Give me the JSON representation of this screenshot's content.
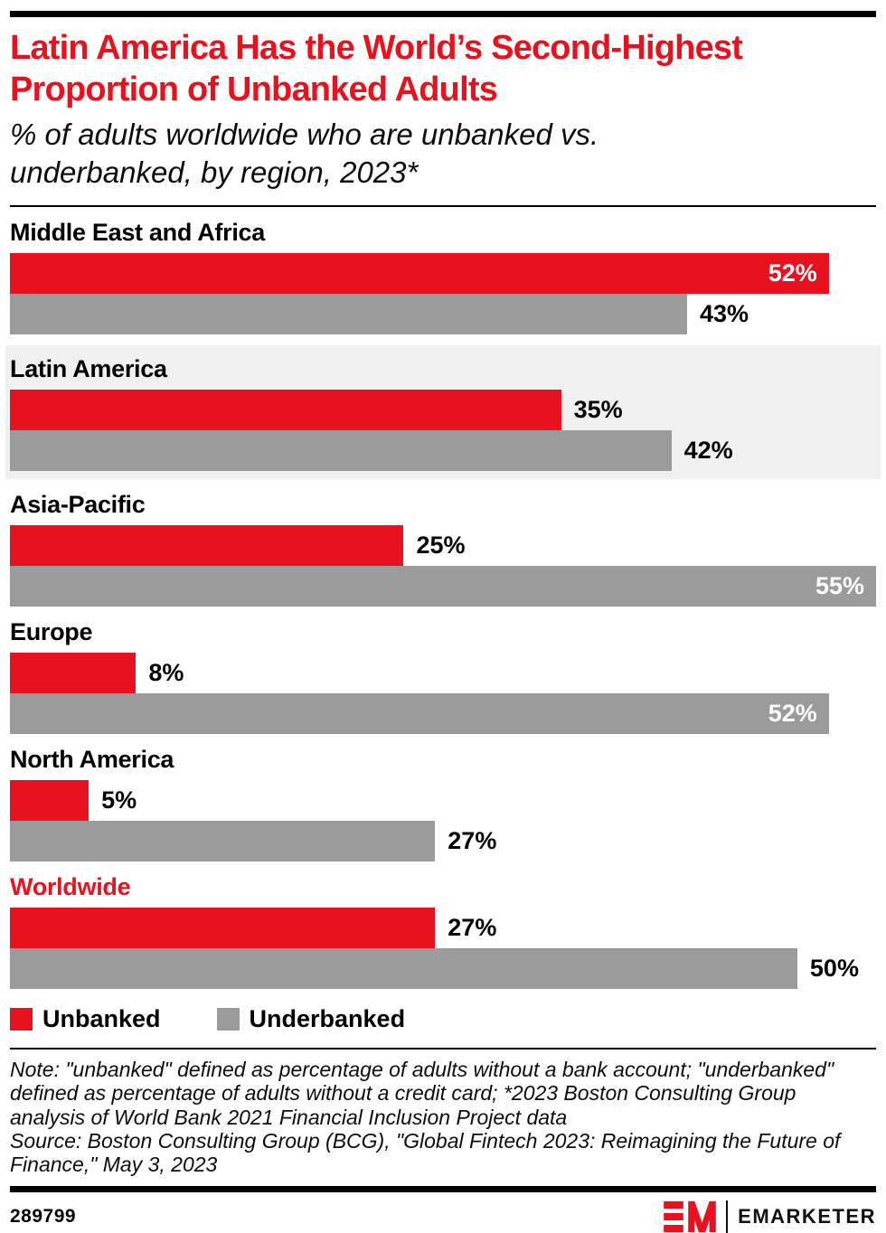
{
  "colors": {
    "accent": "#e8121f",
    "bar_gray": "#9b9b9b",
    "highlight_band": "#f0f0f1",
    "text": "#000000",
    "background": "#ffffff"
  },
  "header": {
    "title": "Latin America Has the World’s Second-Highest Proportion of Unbanked Adults",
    "subtitle": "% of adults worldwide who are unbanked vs. underbanked, by region, 2023*"
  },
  "chart_data": {
    "type": "bar",
    "orientation": "horizontal",
    "value_suffix": "%",
    "xlim": [
      0,
      55
    ],
    "grid": false,
    "legend_position": "bottom",
    "categories": [
      "Middle East and Africa",
      "Latin America",
      "Asia-Pacific",
      "Europe",
      "North America",
      "Worldwide"
    ],
    "series": [
      {
        "name": "Unbanked",
        "color": "#e8121f",
        "values": [
          52,
          35,
          25,
          8,
          5,
          27
        ]
      },
      {
        "name": "Underbanked",
        "color": "#9b9b9b",
        "values": [
          43,
          42,
          55,
          52,
          27,
          50
        ]
      }
    ],
    "regions": [
      {
        "name": "Middle East and Africa",
        "highlighted": false,
        "name_emphasis": false,
        "bars": [
          {
            "series": "Unbanked",
            "value": 52,
            "label": "52%",
            "label_inside": true
          },
          {
            "series": "Underbanked",
            "value": 43,
            "label": "43%",
            "label_inside": false
          }
        ]
      },
      {
        "name": "Latin America",
        "highlighted": true,
        "name_emphasis": false,
        "bars": [
          {
            "series": "Unbanked",
            "value": 35,
            "label": "35%",
            "label_inside": false
          },
          {
            "series": "Underbanked",
            "value": 42,
            "label": "42%",
            "label_inside": false
          }
        ]
      },
      {
        "name": "Asia-Pacific",
        "highlighted": false,
        "name_emphasis": false,
        "bars": [
          {
            "series": "Unbanked",
            "value": 25,
            "label": "25%",
            "label_inside": false
          },
          {
            "series": "Underbanked",
            "value": 55,
            "label": "55%",
            "label_inside": true
          }
        ]
      },
      {
        "name": "Europe",
        "highlighted": false,
        "name_emphasis": false,
        "bars": [
          {
            "series": "Unbanked",
            "value": 8,
            "label": "8%",
            "label_inside": false
          },
          {
            "series": "Underbanked",
            "value": 52,
            "label": "52%",
            "label_inside": true
          }
        ]
      },
      {
        "name": "North America",
        "highlighted": false,
        "name_emphasis": false,
        "bars": [
          {
            "series": "Unbanked",
            "value": 5,
            "label": "5%",
            "label_inside": false
          },
          {
            "series": "Underbanked",
            "value": 27,
            "label": "27%",
            "label_inside": false
          }
        ]
      },
      {
        "name": "Worldwide",
        "highlighted": false,
        "name_emphasis": true,
        "bars": [
          {
            "series": "Unbanked",
            "value": 27,
            "label": "27%",
            "label_inside": false
          },
          {
            "series": "Underbanked",
            "value": 50,
            "label": "50%",
            "label_inside": false
          }
        ]
      }
    ],
    "legend": [
      {
        "label": "Unbanked",
        "color": "#e8121f"
      },
      {
        "label": "Underbanked",
        "color": "#9b9b9b"
      }
    ]
  },
  "footnote": {
    "note": "Note: \"unbanked\" defined as percentage of adults without a bank account; \"underbanked\" defined as percentage of adults without a credit card; *2023 Boston Consulting Group analysis of World Bank 2021 Financial Inclusion Project data",
    "source": "Source: Boston Consulting Group (BCG), \"Global Fintech 2023: Reimagining the Future of Finance,\" May 3, 2023"
  },
  "footer": {
    "chart_id": "289799",
    "logo_monogram": "EM",
    "logo_text": "EMARKETER"
  }
}
